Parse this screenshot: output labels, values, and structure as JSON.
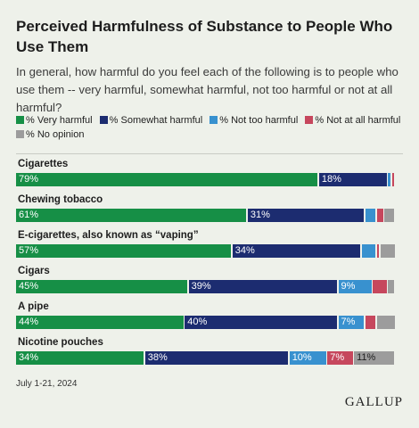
{
  "chart_data": {
    "type": "bar",
    "orientation": "horizontal",
    "stacked": true,
    "title": "Perceived Harmfulness of Substance to People Who Use Them",
    "subtitle": "In general, how harmful do you feel each of the following is to people who use them -- very harmful, somewhat harmful, not too harmful or not at all harmful?",
    "legend_position": "top",
    "xlim": [
      0,
      100
    ],
    "series_names": [
      "% Very harmful",
      "% Somewhat harmful",
      "% Not too harmful",
      "% Not at all harmful",
      "% No opinion"
    ],
    "colors": [
      "#168f46",
      "#1c2c70",
      "#3891cf",
      "#c6475d",
      "#9c9c9c"
    ],
    "categories": [
      "Cigarettes",
      "Chewing tobacco",
      "E-cigarettes, also known as “vaping”",
      "Cigars",
      "A pipe",
      "Nicotine pouches"
    ],
    "values": [
      [
        79,
        18,
        1,
        1,
        0
      ],
      [
        61,
        31,
        3,
        2,
        3
      ],
      [
        57,
        34,
        4,
        1,
        4
      ],
      [
        45,
        39,
        9,
        4,
        2
      ],
      [
        44,
        40,
        7,
        3,
        5
      ],
      [
        34,
        38,
        10,
        7,
        11
      ]
    ],
    "shown_labels": [
      [
        "79%",
        "18%",
        "",
        "",
        ""
      ],
      [
        "61%",
        "31%",
        "",
        "",
        ""
      ],
      [
        "57%",
        "34%",
        "",
        "",
        ""
      ],
      [
        "45%",
        "39%",
        "9%",
        "",
        ""
      ],
      [
        "44%",
        "40%",
        "7%",
        "",
        ""
      ],
      [
        "34%",
        "38%",
        "10%",
        "7%",
        "11%"
      ]
    ]
  },
  "footer": {
    "date": "July 1-21, 2024",
    "logo": "GALLUP"
  }
}
